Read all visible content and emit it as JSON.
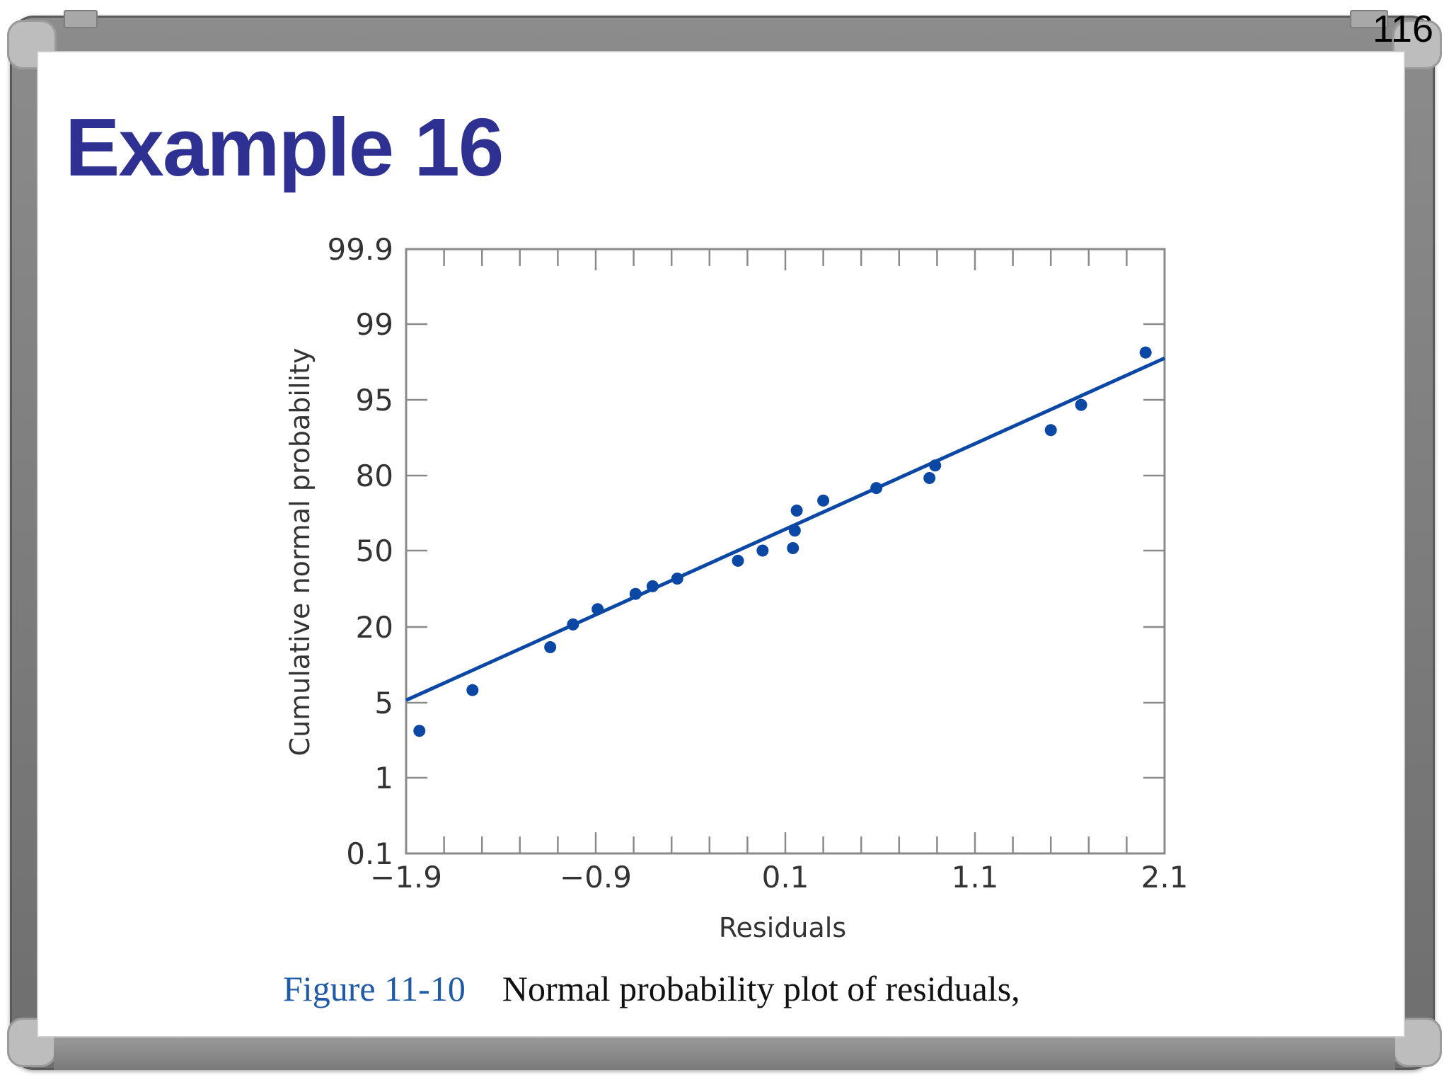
{
  "slide": {
    "title": "Example 16",
    "page_number": "116"
  },
  "caption": {
    "figure_label": "Figure 11-10",
    "text": "Normal probability plot of residuals,"
  },
  "colors": {
    "title": "#2e3192",
    "series": "#0b47a5",
    "frame": "#8a8a8a",
    "caption_label": "#1f5aa6"
  },
  "chart_data": {
    "type": "scatter",
    "title": "",
    "xlabel": "Residuals",
    "ylabel": "Cumulative normal probability",
    "x_ticks": [
      -1.9,
      -0.9,
      0.1,
      1.1,
      2.1
    ],
    "x_tick_labels": [
      "−1.9",
      "−0.9",
      "0.1",
      "1.1",
      "2.1"
    ],
    "xlim": [
      -1.9,
      2.1
    ],
    "y_scale": "normal-probability",
    "y_tick_labels": [
      "99.9",
      "99",
      "95",
      "80",
      "50",
      "20",
      "5",
      "1",
      "0.1"
    ],
    "ylim": [
      "0.1",
      "99.9"
    ],
    "series": [
      {
        "points": [
          {
            "x": -1.83,
            "y": 3.5
          },
          {
            "x": -1.55,
            "y": 7.5
          },
          {
            "x": -1.14,
            "y": 16
          },
          {
            "x": -1.02,
            "y": 21
          },
          {
            "x": -0.89,
            "y": 27
          },
          {
            "x": -0.69,
            "y": 33
          },
          {
            "x": -0.6,
            "y": 36
          },
          {
            "x": -0.47,
            "y": 39
          },
          {
            "x": -0.15,
            "y": 46
          },
          {
            "x": -0.02,
            "y": 50
          },
          {
            "x": 0.14,
            "y": 51
          },
          {
            "x": 0.15,
            "y": 58
          },
          {
            "x": 0.16,
            "y": 66
          },
          {
            "x": 0.3,
            "y": 70
          },
          {
            "x": 0.58,
            "y": 75
          },
          {
            "x": 0.86,
            "y": 79
          },
          {
            "x": 0.89,
            "y": 82
          },
          {
            "x": 1.5,
            "y": 89
          },
          {
            "x": 1.66,
            "y": 94
          },
          {
            "x": 2.0,
            "y": 97.5
          }
        ]
      }
    ],
    "fit_line": {
      "x1": -1.9,
      "y1": 5.5,
      "x2": 2.1,
      "y2": 97.2
    },
    "grid": false
  }
}
